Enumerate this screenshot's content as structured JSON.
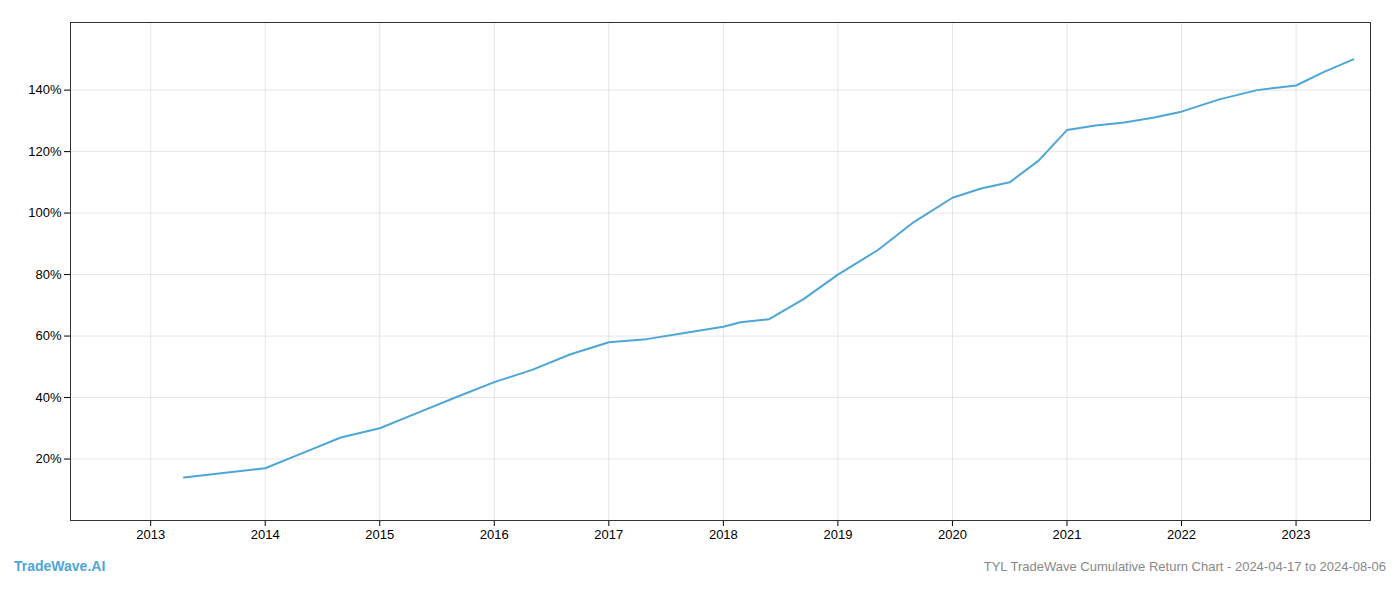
{
  "chart_data": {
    "type": "line",
    "title": "TYL TradeWave Cumulative Return Chart - 2024-04-17 to 2024-08-06",
    "annotations": [
      "TradeWave.AI"
    ],
    "x": [
      2013.29,
      2014.0,
      2014.33,
      2014.66,
      2015.0,
      2015.33,
      2015.66,
      2016.0,
      2016.33,
      2016.66,
      2017.0,
      2017.33,
      2017.66,
      2018.0,
      2018.15,
      2018.4,
      2018.7,
      2019.0,
      2019.35,
      2019.66,
      2020.0,
      2020.25,
      2020.5,
      2020.75,
      2021.0,
      2021.25,
      2021.5,
      2021.75,
      2022.0,
      2022.33,
      2022.66,
      2023.0,
      2023.25,
      2023.5
    ],
    "values": [
      0.14,
      0.17,
      0.22,
      0.27,
      0.3,
      0.35,
      0.4,
      0.45,
      0.49,
      0.54,
      0.58,
      0.59,
      0.61,
      0.63,
      0.645,
      0.655,
      0.72,
      0.8,
      0.88,
      0.97,
      1.05,
      1.08,
      1.1,
      1.17,
      1.27,
      1.285,
      1.295,
      1.31,
      1.33,
      1.37,
      1.4,
      1.415,
      1.46,
      1.5
    ],
    "color": "#4da6d8",
    "xlim": [
      2012.3,
      2023.65
    ],
    "xticks": [
      2013,
      2014,
      2015,
      2016,
      2017,
      2018,
      2019,
      2020,
      2021,
      2022,
      2023
    ],
    "ylim": [
      0.0,
      1.62
    ],
    "yticks": [
      {
        "value": 0.2,
        "label": "20%"
      },
      {
        "value": 0.4,
        "label": "40%"
      },
      {
        "value": 0.6,
        "label": "60%"
      },
      {
        "value": 0.8,
        "label": "80%"
      },
      {
        "value": 1.0,
        "label": "100%"
      },
      {
        "value": 1.2,
        "label": "120%"
      },
      {
        "value": 1.4,
        "label": "140%"
      }
    ],
    "grid": true
  }
}
